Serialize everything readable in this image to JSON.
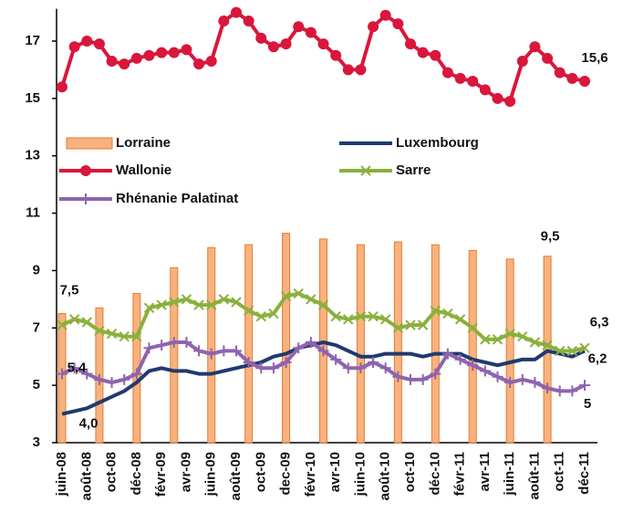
{
  "chart_data": {
    "type": "bar",
    "categories": [
      "juin-08",
      null,
      "août-08",
      null,
      "oct-08",
      null,
      "déc-08",
      null,
      "févr-09",
      null,
      "avr-09",
      null,
      "juin-09",
      null,
      "août-09",
      null,
      "oct-09",
      null,
      "dec-09",
      null,
      "févr-10",
      null,
      "avr-10",
      null,
      "juin-10",
      null,
      "août-10",
      null,
      "oct-10",
      null,
      "déc-10",
      null,
      "févr-11",
      null,
      "avr-11",
      null,
      "juin-11",
      null,
      "août-11",
      null,
      "oct-11",
      null,
      "déc-11"
    ],
    "ylim": [
      3,
      18
    ],
    "yticks": [
      3,
      5,
      7,
      9,
      11,
      13,
      15,
      17
    ],
    "series": [
      {
        "name": "Lorraine",
        "type": "bar",
        "color": "#f7b27f",
        "values": [
          7.5,
          null,
          null,
          7.7,
          null,
          null,
          8.2,
          null,
          null,
          9.1,
          null,
          null,
          9.8,
          null,
          null,
          9.9,
          null,
          null,
          10.3,
          null,
          null,
          10.1,
          null,
          null,
          9.9,
          null,
          null,
          10.0,
          null,
          null,
          9.9,
          null,
          null,
          9.7,
          null,
          null,
          9.4,
          null,
          null,
          9.5,
          null,
          null,
          null
        ],
        "value_labels": [
          "7,5",
          null,
          null,
          null,
          null,
          null,
          null,
          null,
          null,
          null,
          null,
          null,
          null,
          null,
          null,
          null,
          null,
          null,
          null,
          null,
          null,
          null,
          null,
          null,
          null,
          null,
          null,
          null,
          null,
          null,
          null,
          null,
          null,
          null,
          null,
          null,
          null,
          null,
          null,
          "9,5",
          null,
          null,
          null
        ]
      },
      {
        "name": "Luxembourg",
        "type": "line",
        "color": "#1f3a6e",
        "marker": "none",
        "values": [
          4.0,
          4.1,
          4.2,
          4.4,
          4.6,
          4.8,
          5.1,
          5.5,
          5.6,
          5.5,
          5.5,
          5.4,
          5.4,
          5.5,
          5.6,
          5.7,
          5.8,
          6.0,
          6.1,
          6.3,
          6.4,
          6.5,
          6.4,
          6.2,
          6.0,
          6.0,
          6.1,
          6.1,
          6.1,
          6.0,
          6.1,
          6.1,
          6.1,
          5.9,
          5.8,
          5.7,
          5.8,
          5.9,
          5.9,
          6.2,
          6.1,
          6.0,
          6.2
        ],
        "value_labels": [
          "4,0",
          null,
          null,
          null,
          null,
          null,
          null,
          null,
          null,
          null,
          null,
          null,
          null,
          null,
          null,
          null,
          null,
          null,
          null,
          null,
          null,
          null,
          null,
          null,
          null,
          null,
          null,
          null,
          null,
          null,
          null,
          null,
          null,
          null,
          null,
          null,
          null,
          null,
          null,
          null,
          null,
          null,
          "6,2"
        ]
      },
      {
        "name": "Wallonie",
        "type": "line",
        "color": "#d9163c",
        "marker": "circle",
        "values": [
          15.4,
          16.8,
          17.0,
          16.9,
          16.3,
          16.2,
          16.4,
          16.5,
          16.6,
          16.6,
          16.7,
          16.2,
          16.3,
          17.7,
          18.0,
          17.7,
          17.1,
          16.8,
          16.9,
          17.5,
          17.3,
          16.9,
          16.5,
          16.0,
          16.0,
          17.5,
          17.9,
          17.6,
          16.9,
          16.6,
          16.5,
          15.9,
          15.7,
          15.6,
          15.3,
          15.0,
          14.9,
          16.3,
          16.8,
          16.4,
          15.9,
          15.7,
          15.6
        ],
        "value_labels": [
          null,
          null,
          null,
          null,
          null,
          null,
          null,
          null,
          null,
          null,
          null,
          null,
          null,
          null,
          null,
          null,
          null,
          null,
          null,
          null,
          null,
          null,
          null,
          null,
          null,
          null,
          null,
          null,
          null,
          null,
          null,
          null,
          null,
          null,
          null,
          null,
          null,
          null,
          null,
          null,
          null,
          null,
          "15,6"
        ]
      },
      {
        "name": "Sarre",
        "type": "line",
        "color": "#8ab03c",
        "marker": "x",
        "values": [
          7.1,
          7.3,
          7.2,
          6.9,
          6.8,
          6.7,
          6.7,
          7.7,
          7.8,
          7.9,
          8.0,
          7.8,
          7.8,
          8.0,
          7.9,
          7.6,
          7.4,
          7.5,
          8.1,
          8.2,
          8.0,
          7.8,
          7.4,
          7.3,
          7.4,
          7.4,
          7.3,
          7.0,
          7.1,
          7.1,
          7.6,
          7.5,
          7.3,
          7.0,
          6.6,
          6.6,
          6.8,
          6.7,
          6.5,
          6.4,
          6.2,
          6.2,
          6.3
        ],
        "value_labels": [
          null,
          null,
          null,
          null,
          null,
          null,
          null,
          null,
          null,
          null,
          null,
          null,
          null,
          null,
          null,
          null,
          null,
          null,
          null,
          null,
          null,
          null,
          null,
          null,
          null,
          null,
          null,
          null,
          null,
          null,
          null,
          null,
          null,
          null,
          null,
          null,
          null,
          null,
          null,
          null,
          null,
          null,
          "6,3"
        ]
      },
      {
        "name": "Rhénanie Palatinat",
        "type": "line",
        "color": "#8e64b0",
        "marker": "plus",
        "values": [
          5.4,
          5.6,
          5.4,
          5.2,
          5.1,
          5.2,
          5.4,
          6.3,
          6.4,
          6.5,
          6.5,
          6.2,
          6.1,
          6.2,
          6.2,
          5.8,
          5.6,
          5.6,
          5.8,
          6.3,
          6.5,
          6.2,
          5.9,
          5.6,
          5.6,
          5.8,
          5.6,
          5.3,
          5.2,
          5.2,
          5.4,
          6.1,
          5.9,
          5.7,
          5.5,
          5.3,
          5.1,
          5.2,
          5.1,
          4.9,
          4.8,
          4.8,
          5.0
        ],
        "value_labels": [
          "5,4",
          null,
          null,
          null,
          null,
          null,
          null,
          null,
          null,
          null,
          null,
          null,
          null,
          null,
          null,
          null,
          null,
          null,
          null,
          null,
          null,
          null,
          null,
          null,
          null,
          null,
          null,
          null,
          null,
          null,
          null,
          null,
          null,
          null,
          null,
          null,
          null,
          null,
          null,
          null,
          null,
          null,
          "5"
        ]
      }
    ]
  }
}
